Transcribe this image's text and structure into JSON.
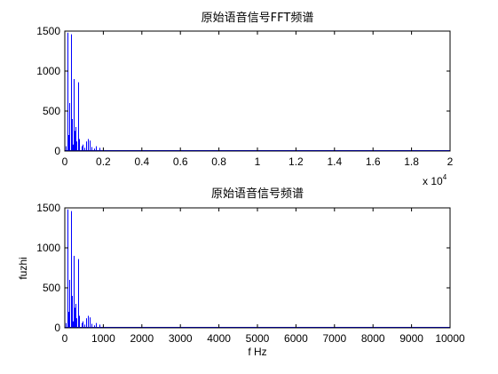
{
  "chart_data": [
    {
      "type": "line",
      "title": "原始语音信号FFT频谱",
      "xlabel": "",
      "ylabel": "",
      "xlim": [
        0,
        20000
      ],
      "ylim": [
        0,
        1500
      ],
      "x_exponent_label": "x 10",
      "x_exponent": "4",
      "x_ticks": [
        0,
        2000,
        4000,
        6000,
        8000,
        10000,
        12000,
        14000,
        16000,
        18000,
        20000
      ],
      "x_tick_labels": [
        "0",
        "0.2",
        "0.4",
        "0.6",
        "0.8",
        "1",
        "1.2",
        "1.4",
        "1.6",
        "1.8",
        "2"
      ],
      "y_ticks": [
        0,
        500,
        1000,
        1500
      ],
      "y_tick_labels": [
        "0",
        "500",
        "1000",
        "1500"
      ],
      "grid": false,
      "color": "#0000ff",
      "series": [
        {
          "x": [
            60,
            120,
            180,
            240,
            300,
            360,
            400,
            450,
            500,
            560,
            620,
            680,
            760,
            860,
            940,
            1000,
            1100,
            1200,
            1300,
            1400,
            1500,
            1600,
            1800,
            2000
          ],
          "values": [
            60,
            1480,
            200,
            600,
            1460,
            400,
            80,
            900,
            250,
            300,
            120,
            860,
            150,
            60,
            80,
            40,
            120,
            150,
            130,
            50,
            30,
            60,
            40,
            15
          ]
        }
      ]
    },
    {
      "type": "line",
      "title": "原始语音信号频谱",
      "xlabel": "f Hz",
      "ylabel": "fuzhi",
      "xlim": [
        0,
        10000
      ],
      "ylim": [
        0,
        1500
      ],
      "x_ticks": [
        0,
        1000,
        2000,
        3000,
        4000,
        5000,
        6000,
        7000,
        8000,
        9000,
        10000
      ],
      "x_tick_labels": [
        "0",
        "1000",
        "2000",
        "3000",
        "4000",
        "5000",
        "6000",
        "7000",
        "8000",
        "9000",
        "10000"
      ],
      "y_ticks": [
        0,
        500,
        1000,
        1500
      ],
      "y_tick_labels": [
        "0",
        "500",
        "1000",
        "1500"
      ],
      "grid": false,
      "color": "#0000ff",
      "series": [
        {
          "x": [
            30,
            60,
            90,
            120,
            150,
            180,
            200,
            225,
            250,
            280,
            310,
            340,
            380,
            430,
            470,
            500,
            550,
            600,
            650,
            700,
            750,
            800,
            900,
            1000
          ],
          "values": [
            60,
            1480,
            200,
            600,
            1460,
            400,
            80,
            900,
            250,
            300,
            120,
            860,
            150,
            60,
            80,
            40,
            120,
            150,
            130,
            50,
            30,
            60,
            40,
            15
          ]
        }
      ]
    }
  ]
}
